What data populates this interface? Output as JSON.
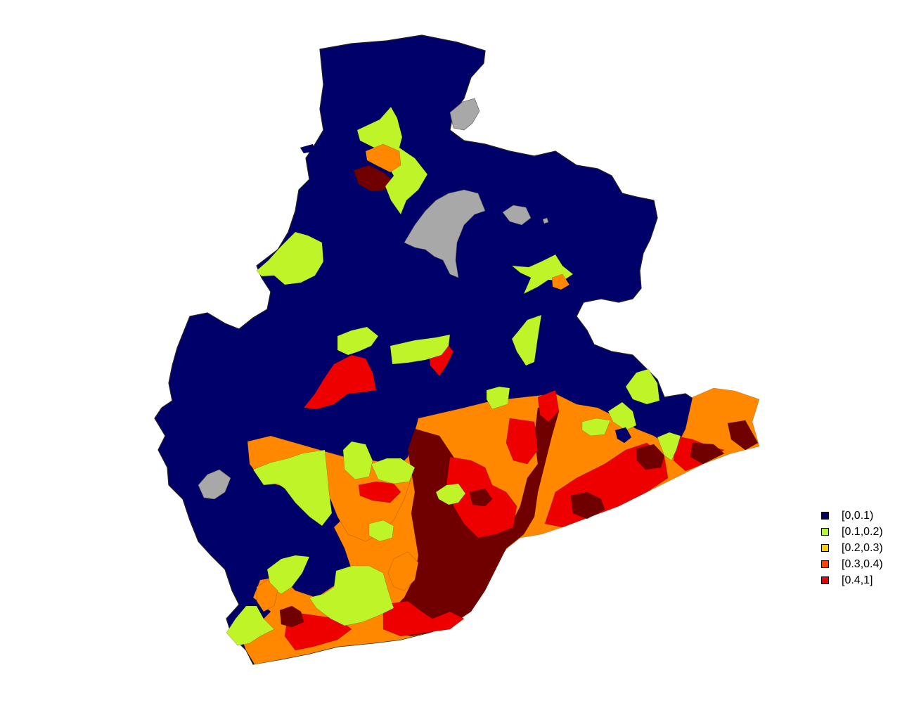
{
  "map": {
    "colors": {
      "outline": "#222222",
      "base": "#00006b",
      "no_data": "#a8a8a8",
      "c1": "#bff528",
      "c3": "#ff8800",
      "c4": "#ef0000",
      "c5": "#700000"
    }
  },
  "legend": {
    "items": [
      {
        "label": "[0,0.1)",
        "color": "#000066"
      },
      {
        "label": "[0.1,0.2)",
        "color": "#b5f536"
      },
      {
        "label": "[0.2,0.3)",
        "color": "#ffcc00"
      },
      {
        "label": "[0.3,0.4)",
        "color": "#ff4400"
      },
      {
        "label": "[0.4,1]",
        "color": "#ee0000"
      }
    ]
  }
}
